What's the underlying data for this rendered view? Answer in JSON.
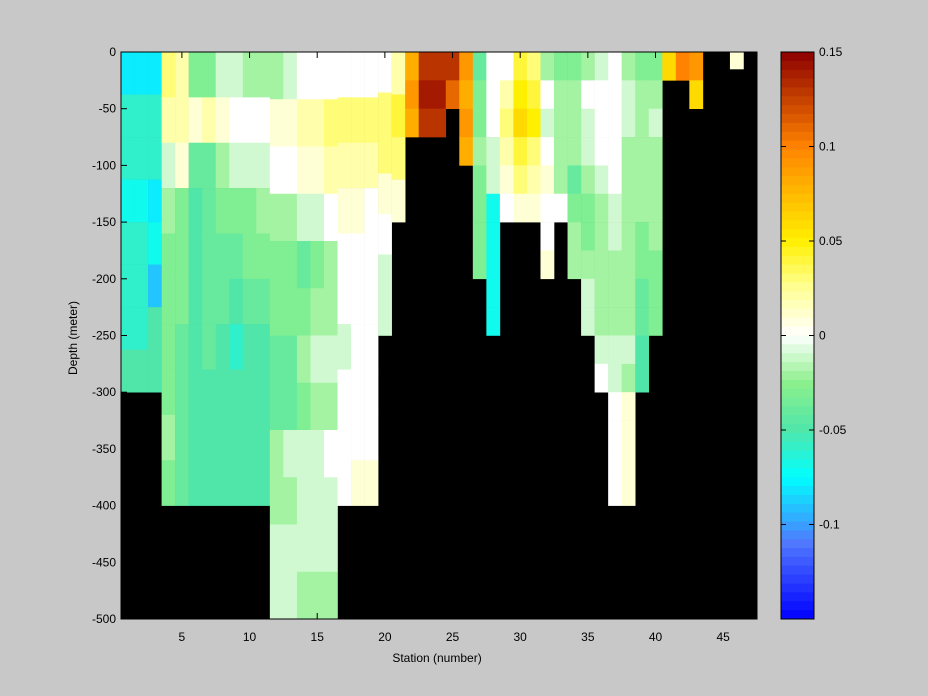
{
  "chart_data": {
    "type": "heatmap",
    "title": "",
    "xlabel": "Station (number)",
    "ylabel": "Depth (meter)",
    "xlim": [
      1,
      47
    ],
    "ylim": [
      -500,
      0
    ],
    "xticks": [
      5,
      10,
      15,
      20,
      25,
      30,
      35,
      40,
      45
    ],
    "yticks": [
      0,
      -50,
      -100,
      -150,
      -200,
      -250,
      -300,
      -350,
      -400,
      -450,
      -500
    ],
    "colorbar": {
      "limits": [
        -0.15,
        0.15
      ],
      "ticks": [
        0.15,
        0.1,
        0.05,
        0,
        -0.05,
        -0.1
      ],
      "tick_labels": [
        "0.15",
        "0.1",
        "0.05",
        "0",
        "-0.05",
        "-0.1"
      ],
      "colormap": "jet-white-centered"
    },
    "mask_color": "#000000",
    "stations": [
      {
        "x": 1,
        "maxdepth": 300,
        "values": [
          -0.08,
          -0.06,
          -0.06,
          -0.07,
          -0.06,
          -0.06,
          -0.06,
          -0.05
        ]
      },
      {
        "x": 2,
        "maxdepth": 300,
        "values": [
          -0.08,
          -0.06,
          -0.06,
          -0.07,
          -0.06,
          -0.06,
          -0.06,
          -0.05
        ]
      },
      {
        "x": 3,
        "maxdepth": 300,
        "values": [
          -0.08,
          -0.06,
          -0.06,
          -0.08,
          -0.07,
          -0.09,
          -0.05,
          -0.05
        ]
      },
      {
        "x": 4,
        "maxdepth": 400,
        "values": [
          0.03,
          0.02,
          -0.01,
          -0.02,
          -0.03,
          -0.03,
          -0.03,
          -0.03,
          -0.02,
          -0.03
        ]
      },
      {
        "x": 5,
        "maxdepth": 400,
        "values": [
          0.02,
          0.02,
          0.01,
          -0.03,
          -0.03,
          -0.03,
          -0.04,
          -0.04,
          -0.04,
          -0.04
        ]
      },
      {
        "x": 6,
        "maxdepth": 400,
        "values": [
          -0.03,
          0.01,
          -0.04,
          -0.05,
          -0.05,
          -0.05,
          -0.05,
          -0.05,
          -0.05,
          -0.05
        ]
      },
      {
        "x": 7,
        "maxdepth": 400,
        "values": [
          -0.03,
          0.02,
          -0.04,
          -0.04,
          -0.04,
          -0.04,
          -0.04,
          -0.05,
          -0.05,
          -0.05
        ]
      },
      {
        "x": 8,
        "maxdepth": 400,
        "values": [
          -0.01,
          0.01,
          -0.02,
          -0.03,
          -0.04,
          -0.04,
          -0.05,
          -0.05,
          -0.05,
          -0.05
        ]
      },
      {
        "x": 9,
        "maxdepth": 400,
        "values": [
          -0.01,
          0.0,
          -0.01,
          -0.03,
          -0.04,
          -0.05,
          -0.06,
          -0.05,
          -0.05,
          -0.05
        ]
      },
      {
        "x": 10,
        "maxdepth": 400,
        "values": [
          -0.02,
          0.0,
          -0.01,
          -0.03,
          -0.03,
          -0.04,
          -0.05,
          -0.05,
          -0.05,
          -0.05
        ]
      },
      {
        "x": 11,
        "maxdepth": 400,
        "values": [
          -0.02,
          0.0,
          -0.01,
          -0.02,
          -0.03,
          -0.04,
          -0.05,
          -0.05,
          -0.05,
          -0.05
        ]
      },
      {
        "x": 12,
        "maxdepth": 500,
        "values": [
          -0.02,
          0.01,
          0.0,
          -0.02,
          -0.03,
          -0.03,
          -0.04,
          -0.04,
          -0.02,
          -0.02,
          -0.01,
          -0.01
        ]
      },
      {
        "x": 13,
        "maxdepth": 500,
        "values": [
          -0.01,
          0.01,
          0.0,
          -0.02,
          -0.03,
          -0.03,
          -0.04,
          -0.04,
          -0.01,
          -0.02,
          -0.01,
          -0.01
        ]
      },
      {
        "x": 14,
        "maxdepth": 500,
        "values": [
          0.0,
          0.02,
          0.01,
          -0.01,
          -0.04,
          -0.03,
          -0.02,
          -0.03,
          -0.01,
          -0.01,
          -0.01,
          -0.02
        ]
      },
      {
        "x": 15,
        "maxdepth": 500,
        "values": [
          0.0,
          0.02,
          0.01,
          -0.01,
          -0.03,
          -0.02,
          -0.01,
          -0.02,
          -0.01,
          -0.01,
          -0.01,
          -0.02
        ]
      },
      {
        "x": 16,
        "maxdepth": 500,
        "values": [
          0.0,
          0.03,
          0.02,
          0.0,
          -0.02,
          -0.02,
          -0.01,
          -0.02,
          0.0,
          -0.01,
          -0.01,
          -0.02
        ]
      },
      {
        "x": 17,
        "maxdepth": 400,
        "values": [
          0.0,
          0.03,
          0.02,
          0.01,
          0.0,
          0.0,
          -0.01,
          0.0,
          0.0,
          0.0
        ]
      },
      {
        "x": 18,
        "maxdepth": 400,
        "values": [
          0.0,
          0.03,
          0.02,
          0.01,
          0.0,
          0.0,
          0.0,
          0.0,
          0.0,
          0.01
        ]
      },
      {
        "x": 19,
        "maxdepth": 400,
        "values": [
          0.0,
          0.03,
          0.02,
          0.0,
          0.0,
          0.0,
          0.0,
          0.0,
          0.0,
          0.01
        ]
      },
      {
        "x": 20,
        "maxdepth": 250,
        "values": [
          0.0,
          0.03,
          0.03,
          0.01,
          0.0,
          -0.01,
          -0.01
        ]
      },
      {
        "x": 21,
        "maxdepth": 150,
        "values": [
          0.02,
          0.04,
          0.03,
          0.01
        ]
      },
      {
        "x": 22,
        "maxdepth": 75,
        "values": [
          0.08,
          0.09,
          0.08
        ]
      },
      {
        "x": 23,
        "maxdepth": 75,
        "values": [
          0.13,
          0.14,
          0.13
        ]
      },
      {
        "x": 24,
        "maxdepth": 75,
        "values": [
          0.13,
          0.14,
          0.13
        ]
      },
      {
        "x": 25,
        "maxdepth": 50,
        "values": [
          0.13,
          0.11
        ]
      },
      {
        "x": 26,
        "maxdepth": 100,
        "values": [
          0.09,
          0.08,
          0.09,
          0.08
        ]
      },
      {
        "x": 27,
        "maxdepth": 200,
        "values": [
          -0.04,
          -0.03,
          -0.03,
          -0.02,
          -0.03,
          -0.03,
          -0.03,
          -0.03
        ]
      },
      {
        "x": 28,
        "maxdepth": 250,
        "values": [
          0.0,
          0.0,
          0.0,
          -0.01,
          -0.01,
          -0.07,
          -0.07,
          -0.07,
          -0.07,
          -0.07
        ]
      },
      {
        "x": 29,
        "maxdepth": 150,
        "values": [
          0.0,
          0.02,
          0.03,
          0.02,
          0.01,
          0.0
        ]
      },
      {
        "x": 30,
        "maxdepth": 150,
        "values": [
          0.04,
          0.05,
          0.06,
          0.04,
          0.03,
          0.01
        ]
      },
      {
        "x": 31,
        "maxdepth": 150,
        "values": [
          0.03,
          0.04,
          0.05,
          0.03,
          0.02,
          0.01
        ]
      },
      {
        "x": 32,
        "maxdepth": 200,
        "values": [
          -0.02,
          0.0,
          -0.01,
          0.0,
          0.01,
          0.0,
          0.0,
          0.01
        ]
      },
      {
        "x": 33,
        "maxdepth": 150,
        "values": [
          -0.03,
          -0.02,
          -0.02,
          -0.02,
          -0.02,
          0.0
        ]
      },
      {
        "x": 34,
        "maxdepth": 200,
        "values": [
          -0.03,
          -0.02,
          -0.02,
          -0.02,
          -0.04,
          -0.03,
          -0.02,
          -0.02
        ]
      },
      {
        "x": 35,
        "maxdepth": 250,
        "values": [
          -0.02,
          0.0,
          -0.01,
          -0.01,
          -0.02,
          -0.03,
          -0.03,
          -0.02,
          -0.01,
          -0.01
        ]
      },
      {
        "x": 36,
        "maxdepth": 300,
        "values": [
          -0.01,
          0.0,
          0.0,
          0.0,
          -0.01,
          -0.02,
          -0.02,
          -0.02,
          -0.02,
          -0.02,
          -0.01,
          0.0
        ]
      },
      {
        "x": 37,
        "maxdepth": 400,
        "values": [
          0.0,
          0.0,
          0.0,
          0.0,
          0.0,
          -0.01,
          -0.01,
          -0.02,
          -0.02,
          -0.02,
          -0.01,
          -0.01,
          0.0,
          0.0,
          0.0,
          0.0
        ]
      },
      {
        "x": 38,
        "maxdepth": 400,
        "values": [
          -0.02,
          -0.01,
          -0.01,
          -0.02,
          -0.02,
          -0.02,
          -0.02,
          -0.02,
          -0.02,
          -0.02,
          -0.01,
          -0.02,
          0.01,
          0.01,
          0.01,
          0.01
        ]
      },
      {
        "x": 39,
        "maxdepth": 300,
        "values": [
          -0.03,
          -0.02,
          -0.02,
          -0.02,
          -0.02,
          -0.02,
          -0.03,
          -0.03,
          -0.04,
          -0.04,
          -0.05,
          -0.05
        ]
      },
      {
        "x": 40,
        "maxdepth": 250,
        "values": [
          -0.03,
          -0.02,
          -0.01,
          -0.02,
          -0.02,
          -0.02,
          -0.02,
          -0.03,
          -0.03,
          -0.03
        ]
      },
      {
        "x": 41,
        "maxdepth": 25,
        "values": [
          0.06
        ]
      },
      {
        "x": 42,
        "maxdepth": 25,
        "values": [
          0.1
        ]
      },
      {
        "x": 43,
        "maxdepth": 50,
        "values": [
          0.09,
          0.06
        ]
      },
      {
        "x": 44,
        "maxdepth": 0,
        "values": []
      },
      {
        "x": 45,
        "maxdepth": 0,
        "values": []
      },
      {
        "x": 46,
        "maxdepth": 15,
        "values": [
          0.01
        ]
      }
    ]
  }
}
